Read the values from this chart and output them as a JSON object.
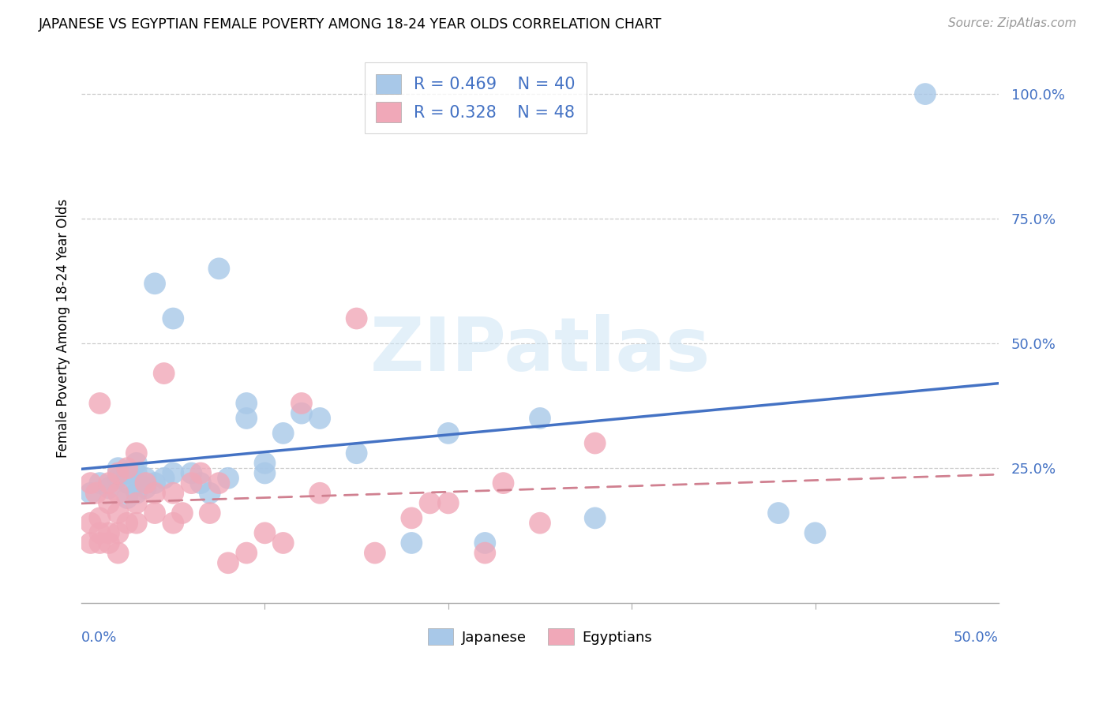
{
  "title": "JAPANESE VS EGYPTIAN FEMALE POVERTY AMONG 18-24 YEAR OLDS CORRELATION CHART",
  "source": "Source: ZipAtlas.com",
  "ylabel": "Female Poverty Among 18-24 Year Olds",
  "xlim": [
    0.0,
    0.5
  ],
  "ylim": [
    -0.02,
    1.08
  ],
  "ytick_vals": [
    0.25,
    0.5,
    0.75,
    1.0
  ],
  "ytick_labels": [
    "25.0%",
    "50.0%",
    "75.0%",
    "100.0%"
  ],
  "xtick_vals": [
    0.1,
    0.2,
    0.3,
    0.4
  ],
  "japanese_color": "#a8c8e8",
  "egyptian_color": "#f0a8b8",
  "japanese_line_color": "#4472c4",
  "egyptian_line_color": "#c0708080",
  "egyptian_line_color_solid": "#d08090",
  "watermark_color": "#ddeeff",
  "legend_r_j": "R = 0.469",
  "legend_n_j": "N = 40",
  "legend_r_e": "R = 0.328",
  "legend_n_e": "N = 48",
  "japanese_x": [
    0.005,
    0.01,
    0.015,
    0.02,
    0.02,
    0.025,
    0.025,
    0.025,
    0.03,
    0.03,
    0.03,
    0.03,
    0.035,
    0.035,
    0.04,
    0.04,
    0.045,
    0.05,
    0.05,
    0.06,
    0.065,
    0.07,
    0.075,
    0.08,
    0.09,
    0.09,
    0.1,
    0.1,
    0.11,
    0.12,
    0.13,
    0.15,
    0.18,
    0.2,
    0.22,
    0.25,
    0.28,
    0.38,
    0.4,
    0.46
  ],
  "japanese_y": [
    0.2,
    0.22,
    0.21,
    0.23,
    0.25,
    0.19,
    0.22,
    0.24,
    0.2,
    0.22,
    0.24,
    0.26,
    0.21,
    0.23,
    0.22,
    0.62,
    0.23,
    0.55,
    0.24,
    0.24,
    0.22,
    0.2,
    0.65,
    0.23,
    0.35,
    0.38,
    0.24,
    0.26,
    0.32,
    0.36,
    0.35,
    0.28,
    0.1,
    0.32,
    0.1,
    0.35,
    0.15,
    0.16,
    0.12,
    1.0
  ],
  "egyptian_x": [
    0.005,
    0.005,
    0.005,
    0.008,
    0.01,
    0.01,
    0.01,
    0.01,
    0.015,
    0.015,
    0.015,
    0.015,
    0.02,
    0.02,
    0.02,
    0.02,
    0.02,
    0.025,
    0.025,
    0.03,
    0.03,
    0.03,
    0.035,
    0.04,
    0.04,
    0.045,
    0.05,
    0.05,
    0.055,
    0.06,
    0.065,
    0.07,
    0.075,
    0.08,
    0.09,
    0.1,
    0.11,
    0.12,
    0.13,
    0.15,
    0.16,
    0.18,
    0.19,
    0.2,
    0.22,
    0.23,
    0.25,
    0.28
  ],
  "egyptian_y": [
    0.1,
    0.14,
    0.22,
    0.2,
    0.1,
    0.12,
    0.15,
    0.38,
    0.1,
    0.12,
    0.18,
    0.22,
    0.08,
    0.12,
    0.16,
    0.2,
    0.24,
    0.14,
    0.25,
    0.14,
    0.18,
    0.28,
    0.22,
    0.16,
    0.2,
    0.44,
    0.14,
    0.2,
    0.16,
    0.22,
    0.24,
    0.16,
    0.22,
    0.06,
    0.08,
    0.12,
    0.1,
    0.38,
    0.2,
    0.55,
    0.08,
    0.15,
    0.18,
    0.18,
    0.08,
    0.22,
    0.14,
    0.3
  ]
}
